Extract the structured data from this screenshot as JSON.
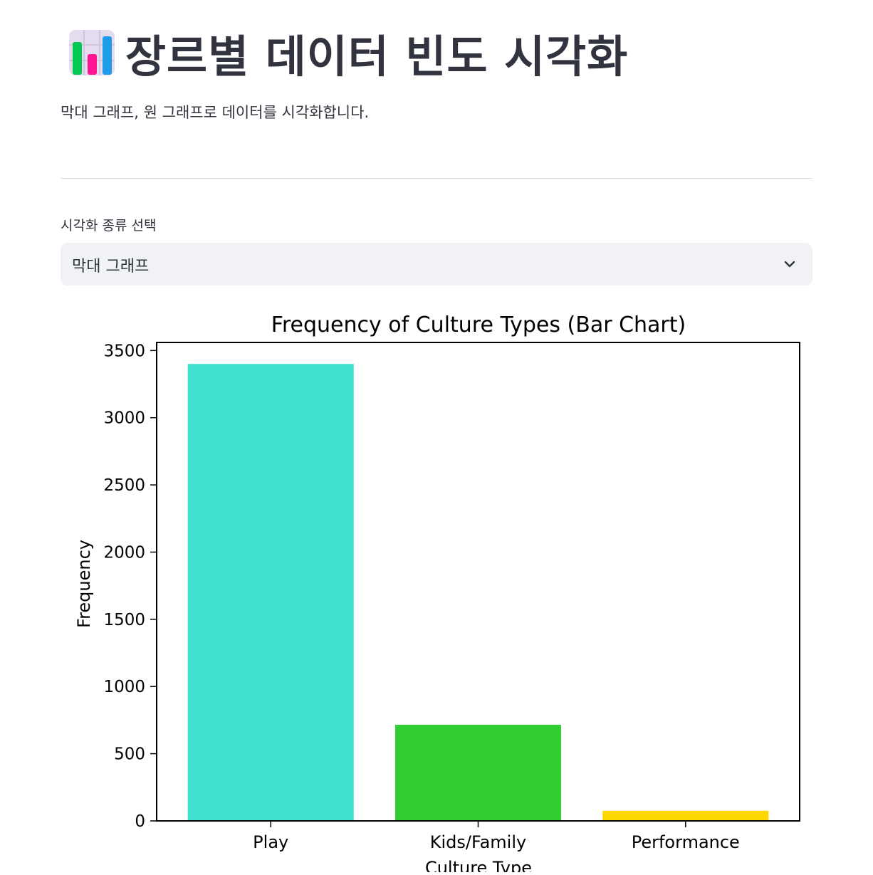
{
  "header": {
    "title": "장르별 데이터 빈도 시각화",
    "title_icon": "bar-chart-icon",
    "subtitle": "막대 그래프, 원 그래프로 데이터를 시각화합니다."
  },
  "selector": {
    "label": "시각화 종류 선택",
    "selected": "막대 그래프",
    "icon": "chevron-down-icon"
  },
  "chart_data": {
    "type": "bar",
    "title": "Frequency of Culture Types (Bar Chart)",
    "xlabel": "Culture Type",
    "ylabel": "Frequency",
    "categories": [
      "Play",
      "Kids/Family",
      "Performance"
    ],
    "values": [
      3400,
      715,
      75
    ],
    "colors": [
      "#40e0d0",
      "#32cd32",
      "#ffd700"
    ],
    "ylim": [
      0,
      3560
    ],
    "yticks": [
      0,
      500,
      1000,
      1500,
      2000,
      2500,
      3000,
      3500
    ],
    "ytick_labels": [
      "0",
      "500",
      "1000",
      "1500",
      "2000",
      "2500",
      "3000",
      "3500"
    ],
    "grid": false,
    "legend": false
  }
}
